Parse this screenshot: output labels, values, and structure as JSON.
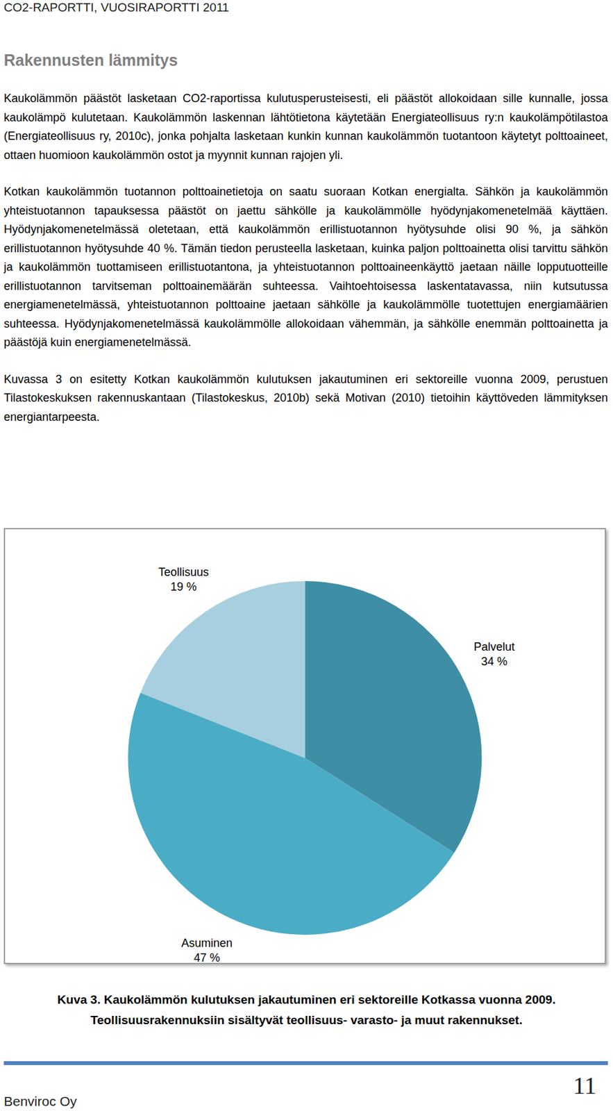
{
  "header": "CO2-RAPORTTI, VUOSIRAPORTTI 2011",
  "heading": "Rakennusten lämmitys",
  "paragraphs": [
    "Kaukolämmön päästöt lasketaan CO2-raportissa kulutusperusteisesti, eli päästöt allokoidaan sille kunnalle, jossa kaukolämpö kulutetaan. Kaukolämmön laskennan lähtötietona käytetään Energiateollisuus ry:n kaukolämpötilastoa (Energiateollisuus ry, 2010c), jonka pohjalta lasketaan kunkin kunnan kaukolämmön tuotantoon käytetyt polttoaineet, ottaen huomioon kaukolämmön ostot ja myynnit kunnan rajojen yli.",
    "Kotkan kaukolämmön tuotannon polttoainetietoja on saatu suoraan Kotkan energialta. Sähkön ja kaukolämmön yhteistuotannon tapauksessa päästöt on jaettu sähkölle ja kaukolämmölle hyödynjakomenetelmää käyttäen. Hyödynjakomenetelmässä oletetaan, että kaukolämmön erillistuotannon hyötysuhde olisi 90 %, ja sähkön erillistuotannon hyötysuhde 40 %. Tämän tiedon perusteella lasketaan, kuinka paljon polttoainetta olisi tarvittu sähkön ja kaukolämmön tuottamiseen erillistuotantona, ja yhteistuotannon polttoaineenkäyttö jaetaan näille lopputuotteille erillistuotannon tarvitseman polttoainemäärän suhteessa. Vaihtoehtoisessa laskentatavassa, niin kutsutussa energiamenetelmässä, yhteistuotannon polttoaine jaetaan sähkölle ja kaukolämmölle tuotettujen energiamäärien suhteessa. Hyödynjakomenetelmässä kaukolämmölle allokoidaan vähemmän, ja sähkölle enemmän polttoainetta ja päästöjä kuin energiamenetelmässä.",
    "Kuvassa 3 on esitetty Kotkan kaukolämmön kulutuksen jakautuminen eri sektoreille vuonna 2009, perustuen Tilastokeskuksen rakennuskantaan (Tilastokeskus, 2010b) sekä Motivan (2010) tietoihin käyttöveden lämmityksen energiantarpeesta."
  ],
  "chart_data": {
    "type": "pie",
    "categories": [
      "Palvelut",
      "Asuminen",
      "Teollisuus"
    ],
    "values": [
      34,
      47,
      19
    ],
    "value_labels": [
      "34 %",
      "47 %",
      "19 %"
    ],
    "colors": [
      "#3e8ea6",
      "#4bacc6",
      "#a8cfdf"
    ],
    "data_labels": true
  },
  "caption": [
    "Kuva 3. Kaukolämmön kulutuksen jakautuminen eri sektoreille Kotkassa vuonna 2009.",
    "Teollisuusrakennuksiin sisältyvät teollisuus- varasto- ja muut rakennukset."
  ],
  "footer": {
    "company": "Benviroc Oy",
    "page": 11
  }
}
